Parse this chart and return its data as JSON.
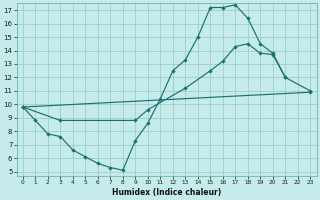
{
  "xlabel": "Humidex (Indice chaleur)",
  "bg_color": "#c5ecea",
  "grid_color": "#9ecece",
  "line_color": "#1a7070",
  "xlim": [
    -0.5,
    23.5
  ],
  "ylim": [
    4.7,
    17.5
  ],
  "yticks": [
    5,
    6,
    7,
    8,
    9,
    10,
    11,
    12,
    13,
    14,
    15,
    16,
    17
  ],
  "xticks": [
    0,
    1,
    2,
    3,
    4,
    5,
    6,
    7,
    8,
    9,
    10,
    11,
    12,
    13,
    14,
    15,
    16,
    17,
    18,
    19,
    20,
    21,
    22,
    23
  ],
  "line1_x": [
    0,
    1,
    2,
    3,
    4,
    5,
    6,
    7,
    8,
    9,
    10,
    11,
    12,
    13,
    14,
    15,
    16,
    17,
    18,
    19,
    20,
    21
  ],
  "line1_y": [
    9.8,
    8.8,
    7.8,
    7.6,
    6.6,
    6.1,
    5.6,
    5.3,
    5.1,
    7.3,
    8.6,
    10.4,
    12.5,
    13.3,
    15.0,
    17.2,
    17.2,
    17.4,
    16.4,
    14.5,
    13.8,
    12.0
  ],
  "line2_x": [
    0,
    3,
    9,
    10,
    13,
    15,
    16,
    17,
    18,
    19,
    20,
    21,
    23
  ],
  "line2_y": [
    9.8,
    8.8,
    8.8,
    9.6,
    11.2,
    12.5,
    13.2,
    14.3,
    14.5,
    13.8,
    13.7,
    12.0,
    11.0
  ],
  "line3_x": [
    0,
    23
  ],
  "line3_y": [
    9.8,
    10.9
  ]
}
